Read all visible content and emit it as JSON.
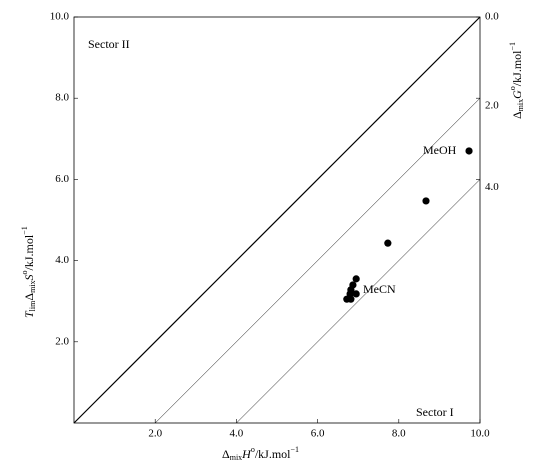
{
  "chart_data": {
    "type": "scatter",
    "x_label": [
      "Δ",
      "mix",
      "H",
      "o",
      "/kJ.mol",
      "−1"
    ],
    "y_label": [
      "T",
      "lim",
      "Δ",
      "mix",
      "S",
      "o",
      "/kJ.mol",
      "−1"
    ],
    "y2_label": [
      "Δ",
      "mix",
      "G",
      "o",
      "/kJ.mol",
      "−1"
    ],
    "annotations": [
      "Sector II",
      "Sector I",
      "MeOH",
      "MeCN"
    ],
    "x": [
      9.73,
      8.67,
      7.73,
      6.95,
      6.87,
      6.82,
      6.8,
      6.95,
      6.72,
      6.82
    ],
    "series": [
      {
        "color": "#000000",
        "values": [
          6.7,
          5.47,
          4.43,
          3.55,
          3.4,
          3.28,
          3.18,
          3.18,
          3.05,
          3.05
        ]
      }
    ],
    "xlim": [
      0,
      10
    ],
    "ylim": [
      0,
      10
    ],
    "xticks": [
      {
        "value": 2,
        "label": "2.0"
      },
      {
        "value": 4,
        "label": "4.0"
      },
      {
        "value": 6,
        "label": "6.0"
      },
      {
        "value": 8,
        "label": "8.0"
      },
      {
        "value": 10,
        "label": "10.0"
      }
    ],
    "yticks": [
      {
        "value": 2,
        "label": "2.0"
      },
      {
        "value": 4,
        "label": "4.0"
      },
      {
        "value": 6,
        "label": "6.0"
      },
      {
        "value": 8,
        "label": "8.0"
      },
      {
        "value": 10,
        "label": "10.0"
      }
    ],
    "y2ticks": [
      {
        "value": 0,
        "label": "0.0"
      },
      {
        "value": 2,
        "label": "2.0"
      },
      {
        "value": 4,
        "label": "4.0"
      }
    ]
  }
}
